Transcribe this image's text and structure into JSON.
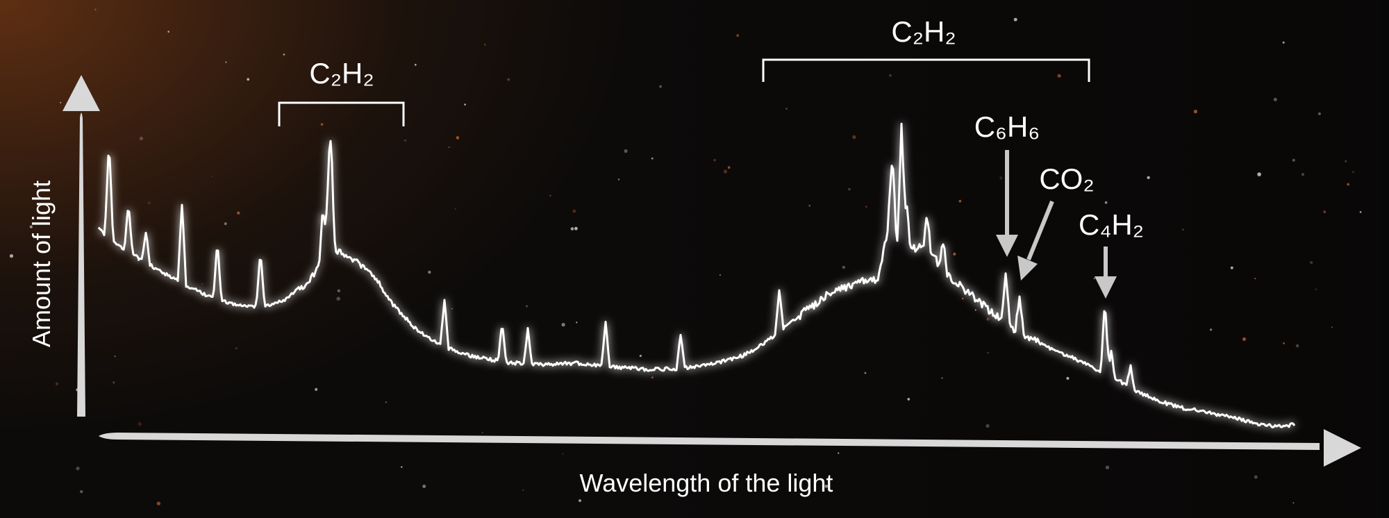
{
  "chart_data": {
    "type": "line",
    "title": "",
    "xlabel": "Wavelength of the light",
    "ylabel": "Amount of light",
    "grid": false,
    "legend": "none",
    "x_ticks": [],
    "y_ticks": [],
    "series": [
      {
        "color": "#ffffff"
      }
    ],
    "annotations": [
      {
        "formula": "C₂H₂",
        "kind": "bracket",
        "feature": "band"
      },
      {
        "formula": "C₂H₂",
        "kind": "bracket",
        "feature": "band"
      },
      {
        "formula": "C₆H₆",
        "kind": "arrow",
        "feature": "line"
      },
      {
        "formula": "CO₂",
        "kind": "arrow",
        "feature": "line"
      },
      {
        "formula": "C₄H₂",
        "kind": "arrow",
        "feature": "line"
      }
    ]
  },
  "colors": {
    "background": "#1a110c",
    "spectrum": "#ffffff",
    "axes": "#d8d8d8",
    "arrows": "#c8c8c8",
    "text": "#ffffff"
  }
}
